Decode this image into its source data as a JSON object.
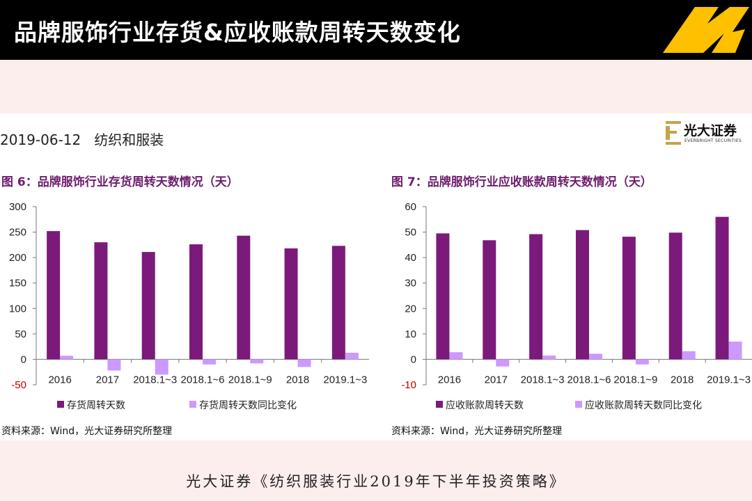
{
  "header": {
    "title": "品牌服饰行业存货&应收账款周转天数变化",
    "logo_icon": "n-brand-logo-icon",
    "logo_color": "#ffc000"
  },
  "report": {
    "date": "2019-06-12",
    "sector": "纺织和服装",
    "brand_name": "光大证券",
    "brand_sub": "EVERBRIGHT SECURITIES",
    "brand_icon": "e-emblem-icon",
    "brand_color": "#c8a14a"
  },
  "colors": {
    "primary_series": "#7b1a7b",
    "secondary_series": "#cc99ff",
    "title_color": "#6d1d6d"
  },
  "chart_data": [
    {
      "type": "bar",
      "title": "图 6：品牌服饰行业存货周转天数情况（天）",
      "categories": [
        "2016",
        "2017",
        "2018.1~3",
        "2018.1~6",
        "2018.1~9",
        "2018",
        "2019.1~3"
      ],
      "series": [
        {
          "name": "存货周转天数",
          "values": [
            252,
            230,
            211,
            226,
            243,
            218,
            223
          ]
        },
        {
          "name": "存货周转天数同比变化",
          "values": [
            7,
            -22,
            -30,
            -10,
            -8,
            -15,
            13
          ]
        }
      ],
      "yticks": [
        300,
        250,
        200,
        150,
        100,
        50,
        0,
        -50
      ],
      "ylim": [
        -50,
        300
      ],
      "legend": "bottom",
      "source": "资料来源：Wind，光大证券研究所整理"
    },
    {
      "type": "bar",
      "title": "图 7：品牌服饰行业应收账款周转天数情况（天）",
      "categories": [
        "2016",
        "2017",
        "2018.1~3",
        "2018.1~6",
        "2018.1~9",
        "2018",
        "2019.1~3"
      ],
      "series": [
        {
          "name": "应收账款周转天数",
          "values": [
            49.5,
            46.8,
            49.2,
            50.8,
            48.2,
            49.8,
            56
          ]
        },
        {
          "name": "应收账款周转天数同比变化",
          "values": [
            2.8,
            -2.8,
            1.5,
            2.2,
            -2,
            3.2,
            7
          ]
        }
      ],
      "yticks": [
        60,
        50,
        40,
        30,
        20,
        10,
        0,
        -10
      ],
      "ylim": [
        -10,
        60
      ],
      "legend": "bottom",
      "source": "资料来源：Wind，光大证券研究所整理"
    }
  ],
  "footer": {
    "text": "光大证券《纺织服装行业2019年下半年投资策略》"
  }
}
